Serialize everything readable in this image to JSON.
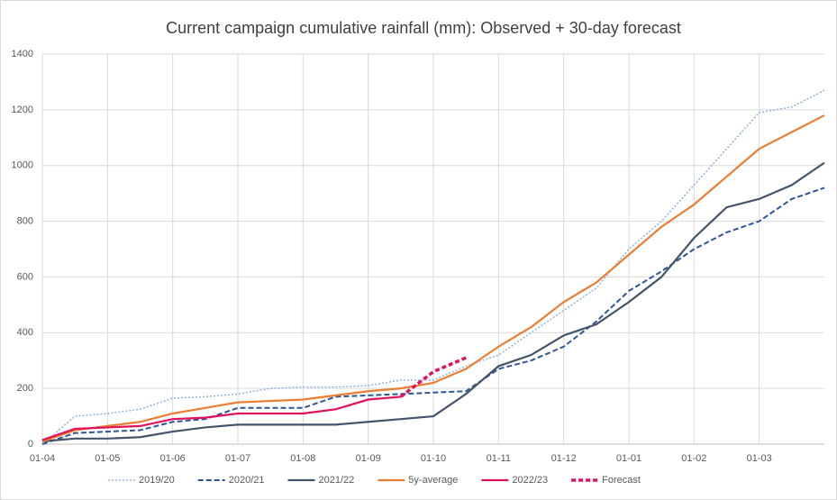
{
  "chart_data": {
    "type": "line",
    "title": "Current campaign cumulative rainfall (mm): Observed + 30-day forecast",
    "categories": [
      "01-04",
      null,
      "01-05",
      null,
      "01-06",
      null,
      "01-07",
      null,
      "01-08",
      null,
      "01-09",
      null,
      "01-10",
      null,
      "01-11",
      null,
      "01-12",
      null,
      "01-01",
      null,
      "01-02",
      null,
      "01-03",
      null,
      null
    ],
    "ylim": [
      0,
      1400
    ],
    "yticks": [
      0,
      200,
      400,
      600,
      800,
      1000,
      1200,
      1400
    ],
    "grid": true,
    "legend": "bottom",
    "series": [
      {
        "name": "2019/20",
        "color": "#8fb0e0",
        "dash": "dotted",
        "values": [
          0,
          100,
          110,
          125,
          165,
          170,
          180,
          200,
          205,
          205,
          210,
          230,
          230,
          280,
          320,
          400,
          480,
          560,
          700,
          800,
          930,
          1060,
          1190,
          1210,
          1270
        ]
      },
      {
        "name": "2020/21",
        "color": "#2f5597",
        "dash": "dashed",
        "values": [
          0,
          40,
          45,
          50,
          80,
          90,
          130,
          130,
          130,
          170,
          175,
          180,
          185,
          190,
          270,
          300,
          350,
          440,
          550,
          620,
          700,
          760,
          800,
          880,
          920
        ]
      },
      {
        "name": "2021/22",
        "color": "#44546a",
        "dash": "solid",
        "values": [
          10,
          20,
          20,
          25,
          45,
          60,
          70,
          70,
          70,
          70,
          80,
          90,
          100,
          180,
          280,
          320,
          390,
          430,
          510,
          600,
          740,
          850,
          880,
          930,
          1010
        ]
      },
      {
        "name": "5y-average",
        "color": "#ed7d31",
        "dash": "solid",
        "values": [
          10,
          50,
          65,
          80,
          110,
          130,
          150,
          155,
          160,
          175,
          190,
          200,
          220,
          270,
          350,
          420,
          510,
          580,
          680,
          780,
          860,
          960,
          1060,
          1120,
          1180
        ]
      },
      {
        "name": "2022/23",
        "color": "#e0115f",
        "dash": "solid",
        "values": [
          15,
          55,
          60,
          65,
          90,
          95,
          110,
          110,
          110,
          125,
          160,
          170,
          null,
          null,
          null,
          null,
          null,
          null,
          null,
          null,
          null,
          null,
          null,
          null,
          null
        ]
      },
      {
        "name": "Forecast",
        "color": "#e0115f",
        "dash": "forecast",
        "values": [
          null,
          null,
          null,
          null,
          null,
          null,
          null,
          null,
          null,
          null,
          null,
          170,
          260,
          310,
          null,
          null,
          null,
          null,
          null,
          null,
          null,
          null,
          null,
          null,
          null
        ]
      }
    ]
  }
}
